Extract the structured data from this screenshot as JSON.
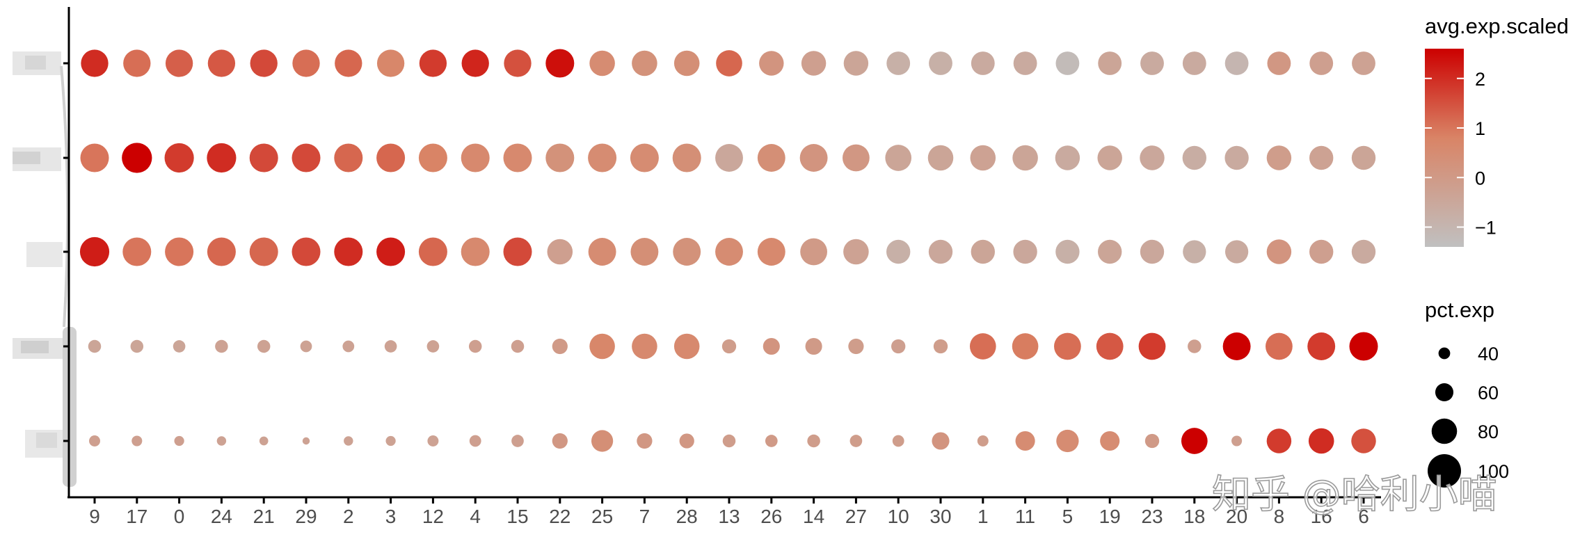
{
  "chart_data": {
    "type": "dotplot",
    "x_categories": [
      "9",
      "17",
      "0",
      "24",
      "21",
      "29",
      "2",
      "3",
      "12",
      "4",
      "15",
      "22",
      "25",
      "7",
      "28",
      "13",
      "26",
      "14",
      "27",
      "10",
      "30",
      "1",
      "11",
      "5",
      "19",
      "23",
      "18",
      "20",
      "8",
      "16",
      "6"
    ],
    "y_categories_count": 5,
    "y_labels_note": "gene labels are blurred/obscured in the original",
    "rows": [
      {
        "avg_exp_scaled": [
          2.0,
          1.1,
          1.3,
          1.4,
          1.6,
          1.1,
          1.2,
          0.7,
          1.8,
          2.1,
          1.5,
          2.4,
          0.5,
          0.3,
          0.4,
          1.2,
          0.2,
          -0.2,
          -0.4,
          -0.8,
          -0.8,
          -0.6,
          -0.6,
          -1.2,
          -0.4,
          -0.6,
          -0.6,
          -1.0,
          0.1,
          -0.2,
          -0.3
        ],
        "pct_exp": [
          85,
          85,
          85,
          85,
          85,
          85,
          85,
          85,
          85,
          85,
          85,
          88,
          80,
          80,
          80,
          82,
          78,
          78,
          78,
          75,
          75,
          75,
          75,
          75,
          75,
          75,
          75,
          75,
          75,
          75,
          75
        ]
      },
      {
        "avg_exp_scaled": [
          1.0,
          2.6,
          1.8,
          2.0,
          1.6,
          1.6,
          1.2,
          1.2,
          0.8,
          0.6,
          0.6,
          0.3,
          0.5,
          0.5,
          0.4,
          -0.5,
          0.4,
          0.2,
          0.1,
          -0.4,
          -0.4,
          -0.3,
          -0.4,
          -0.6,
          -0.4,
          -0.5,
          -0.7,
          -0.6,
          -0.1,
          -0.3,
          -0.4
        ],
        "pct_exp": [
          88,
          92,
          90,
          90,
          88,
          88,
          88,
          88,
          88,
          88,
          88,
          88,
          88,
          88,
          88,
          86,
          86,
          86,
          84,
          82,
          80,
          80,
          80,
          78,
          78,
          78,
          76,
          76,
          78,
          76,
          76
        ]
      },
      {
        "avg_exp_scaled": [
          2.2,
          1.0,
          1.0,
          1.2,
          1.2,
          1.6,
          2.0,
          2.2,
          1.2,
          0.6,
          1.6,
          -0.2,
          0.5,
          0.4,
          0.3,
          0.5,
          0.6,
          0.0,
          -0.3,
          -0.8,
          -0.5,
          -0.4,
          -0.5,
          -0.8,
          -0.4,
          -0.5,
          -0.8,
          -0.6,
          0.2,
          -0.2,
          -0.6
        ],
        "pct_exp": [
          90,
          88,
          88,
          88,
          88,
          88,
          88,
          88,
          88,
          88,
          88,
          80,
          86,
          86,
          86,
          86,
          86,
          84,
          80,
          76,
          76,
          76,
          76,
          76,
          76,
          76,
          74,
          74,
          78,
          76,
          76
        ]
      },
      {
        "avg_exp_scaled": [
          -0.4,
          -0.4,
          -0.4,
          -0.3,
          -0.3,
          -0.3,
          -0.3,
          -0.3,
          -0.3,
          -0.2,
          -0.2,
          0.0,
          0.7,
          0.6,
          0.6,
          -0.1,
          0.2,
          0.0,
          -0.1,
          -0.2,
          -0.1,
          1.1,
          0.9,
          1.1,
          1.4,
          1.8,
          -0.2,
          2.6,
          1.1,
          1.8,
          2.6
        ],
        "pct_exp": [
          44,
          44,
          42,
          44,
          44,
          40,
          40,
          42,
          42,
          44,
          44,
          52,
          80,
          80,
          80,
          48,
          56,
          56,
          52,
          48,
          48,
          82,
          82,
          84,
          84,
          84,
          46,
          86,
          84,
          86,
          88
        ]
      },
      {
        "avg_exp_scaled": [
          -0.2,
          -0.2,
          -0.2,
          -0.3,
          -0.3,
          -0.3,
          -0.3,
          -0.3,
          -0.3,
          -0.2,
          -0.2,
          0.1,
          0.4,
          0.1,
          0.1,
          -0.1,
          0.0,
          -0.1,
          -0.1,
          -0.1,
          0.2,
          -0.1,
          0.5,
          0.5,
          0.5,
          0.0,
          2.6,
          -0.2,
          1.8,
          2.0,
          1.5
        ],
        "pct_exp": [
          38,
          36,
          34,
          32,
          30,
          24,
          32,
          34,
          38,
          40,
          42,
          52,
          70,
          52,
          50,
          44,
          42,
          44,
          42,
          40,
          58,
          38,
          64,
          72,
          64,
          48,
          82,
          36,
          78,
          80,
          78
        ]
      }
    ],
    "color_legend": {
      "title": "avg.exp.scaled",
      "ticks": [
        "2",
        "1",
        "0",
        "−1"
      ],
      "range": [
        -1.4,
        2.6
      ],
      "colors": {
        "low": "#c0c0c0",
        "mid": "#d98466",
        "high": "#cc0000"
      }
    },
    "size_legend": {
      "title": "pct.exp",
      "labels": [
        "40",
        "60",
        "80",
        "100"
      ],
      "values": [
        40,
        60,
        80,
        100
      ]
    }
  },
  "watermark": {
    "text": "知乎 @哈利小喵"
  }
}
